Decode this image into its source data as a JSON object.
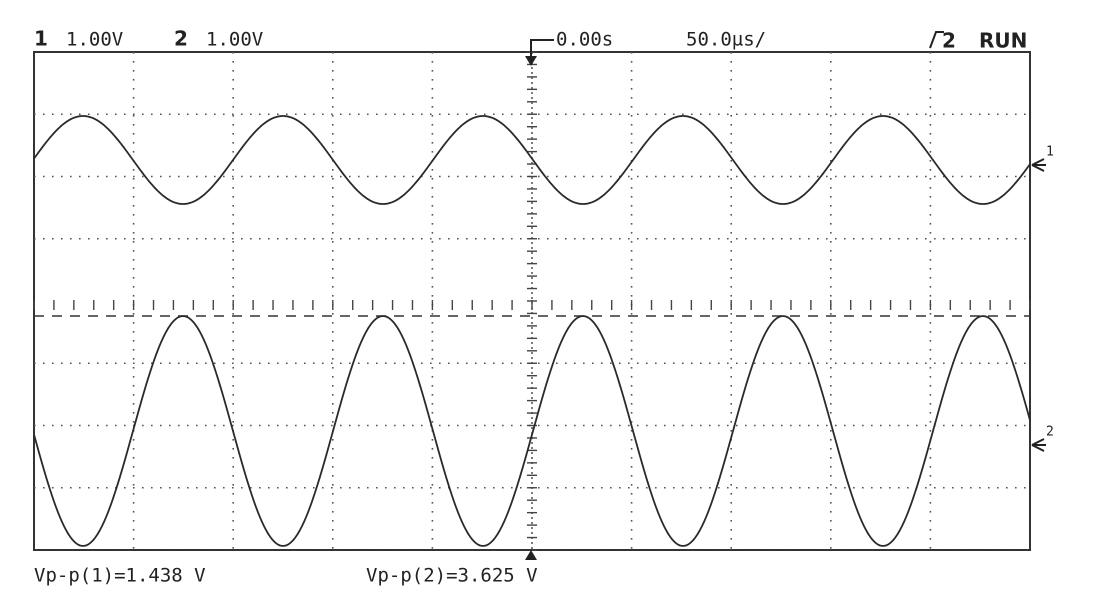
{
  "header": {
    "ch1_number": "1",
    "ch1_scale": "1.00V",
    "ch2_number": "2",
    "ch2_scale": "1.00V",
    "time_offset": "0.00s",
    "time_scale": "50.0µs/",
    "trigger_source": "2",
    "status": "RUN"
  },
  "markers": [
    "1",
    "2"
  ],
  "measurements": [
    "Vp-p(1)=1.438 V",
    "Vp-p(2)=3.625 V"
  ]
}
